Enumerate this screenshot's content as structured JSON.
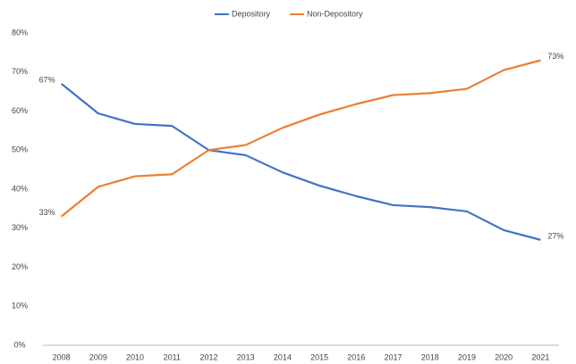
{
  "chart_data": {
    "type": "line",
    "categories": [
      "2008",
      "2009",
      "2010",
      "2011",
      "2012",
      "2013",
      "2014",
      "2015",
      "2016",
      "2017",
      "2018",
      "2019",
      "2020",
      "2021"
    ],
    "series": [
      {
        "name": "Depository",
        "color": "#4472c4",
        "values": [
          67,
          59.4,
          56.7,
          56.2,
          50,
          48.7,
          44.3,
          40.9,
          38.2,
          35.9,
          35.4,
          34.3,
          29.5,
          27
        ],
        "value_labels": [
          "67%",
          null,
          null,
          null,
          null,
          null,
          null,
          null,
          null,
          null,
          null,
          null,
          null,
          "27%"
        ]
      },
      {
        "name": "Non-Depository",
        "color": "#ed7d31",
        "values": [
          33,
          40.6,
          43.3,
          43.8,
          50,
          51.3,
          55.7,
          59.1,
          61.8,
          64.1,
          64.6,
          65.7,
          70.5,
          73
        ],
        "value_labels": [
          "33%",
          null,
          null,
          null,
          null,
          null,
          null,
          null,
          null,
          null,
          null,
          null,
          null,
          "73%"
        ]
      }
    ],
    "ylim": [
      0,
      80
    ],
    "yticks": [
      {
        "value": 0,
        "label": "0%"
      },
      {
        "value": 10,
        "label": "10%"
      },
      {
        "value": 20,
        "label": "20%"
      },
      {
        "value": 30,
        "label": "30%"
      },
      {
        "value": 40,
        "label": "40%"
      },
      {
        "value": 50,
        "label": "50%"
      },
      {
        "value": 60,
        "label": "60%"
      },
      {
        "value": 70,
        "label": "70%"
      },
      {
        "value": 80,
        "label": "80%"
      }
    ],
    "grid": false,
    "legend": "top"
  }
}
